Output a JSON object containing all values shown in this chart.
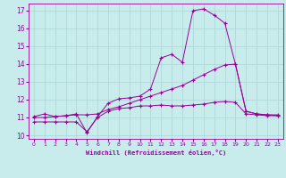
{
  "xlabel": "Windchill (Refroidissement éolien,°C)",
  "background_color": "#c8ecec",
  "grid_color": "#aad4d4",
  "line_color": "#990099",
  "xlim": [
    -0.5,
    23.5
  ],
  "ylim": [
    9.8,
    17.4
  ],
  "xticks": [
    0,
    1,
    2,
    3,
    4,
    5,
    6,
    7,
    8,
    9,
    10,
    11,
    12,
    13,
    14,
    15,
    16,
    17,
    18,
    19,
    20,
    21,
    22,
    23
  ],
  "yticks": [
    10,
    11,
    12,
    13,
    14,
    15,
    16,
    17
  ],
  "line1_x": [
    0,
    1,
    2,
    3,
    4,
    5,
    6,
    7,
    8,
    9,
    10,
    11,
    12,
    13,
    14,
    15,
    16,
    17,
    18,
    19,
    20,
    21,
    22,
    23
  ],
  "line1_y": [
    10.75,
    10.75,
    10.75,
    10.75,
    10.75,
    10.2,
    11.0,
    11.35,
    11.5,
    11.55,
    11.65,
    11.65,
    11.7,
    11.65,
    11.65,
    11.7,
    11.75,
    11.85,
    11.9,
    11.85,
    11.2,
    11.15,
    11.1,
    11.1
  ],
  "line2_x": [
    0,
    1,
    2,
    3,
    4,
    5,
    6,
    7,
    8,
    9,
    10,
    11,
    12,
    13,
    14,
    15,
    16,
    17,
    18,
    19,
    20,
    21,
    22,
    23
  ],
  "line2_y": [
    11.0,
    11.0,
    11.05,
    11.1,
    11.15,
    11.15,
    11.2,
    11.45,
    11.6,
    11.8,
    12.0,
    12.2,
    12.4,
    12.6,
    12.8,
    13.1,
    13.4,
    13.7,
    13.95,
    14.0,
    11.35,
    11.2,
    11.15,
    11.1
  ],
  "line3_x": [
    0,
    1,
    2,
    3,
    4,
    5,
    6,
    7,
    8,
    9,
    10,
    11,
    12,
    13,
    14,
    15,
    16,
    17,
    18,
    19,
    20,
    21,
    22,
    23
  ],
  "line3_y": [
    11.05,
    11.2,
    11.05,
    11.1,
    11.2,
    10.15,
    11.05,
    11.8,
    12.05,
    12.1,
    12.2,
    12.6,
    14.35,
    14.55,
    14.1,
    17.0,
    17.1,
    16.75,
    16.3,
    14.0,
    11.35,
    11.2,
    11.15,
    11.15
  ]
}
